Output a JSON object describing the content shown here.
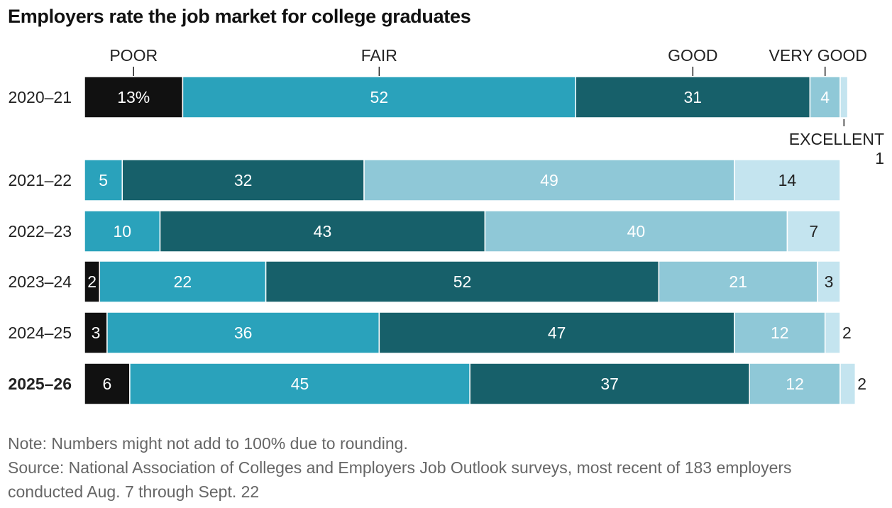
{
  "title": "Employers rate the job market for college graduates",
  "note": "Note: Numbers might not add to 100% due to rounding.",
  "source_line1": "Source: National Association of Colleges and Employers Job Outlook surveys, most recent of 183 employers",
  "source_line2": "conducted Aug. 7 through Sept. 22",
  "colors": {
    "poor": "#111111",
    "fair": "#2aa2bb",
    "good": "#17606a",
    "very_good": "#8fc8d7",
    "excellent": "#c4e4ef"
  },
  "chart_data": {
    "type": "bar",
    "orientation": "horizontal",
    "stacked": true,
    "categories": [
      "2020–21",
      "2021–22",
      "2022–23",
      "2023–24",
      "2024–25",
      "2025–26"
    ],
    "highlight_category": "2025–26",
    "series": [
      {
        "name": "POOR",
        "key": "poor",
        "values": [
          13,
          0,
          0,
          2,
          3,
          6
        ]
      },
      {
        "name": "FAIR",
        "key": "fair",
        "values": [
          52,
          5,
          10,
          22,
          36,
          45
        ]
      },
      {
        "name": "GOOD",
        "key": "good",
        "values": [
          31,
          32,
          43,
          52,
          47,
          37
        ]
      },
      {
        "name": "VERY GOOD",
        "key": "very_good",
        "values": [
          4,
          49,
          40,
          21,
          12,
          12
        ]
      },
      {
        "name": "EXCELLENT",
        "key": "excellent",
        "values": [
          1,
          14,
          7,
          3,
          2,
          2
        ]
      }
    ],
    "label_suffix_first": "%",
    "xlim": [
      0,
      100
    ],
    "legend": "labels above first bar"
  }
}
